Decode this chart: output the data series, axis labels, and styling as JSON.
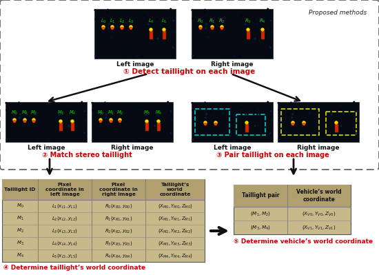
{
  "bg_color": "#ffffff",
  "proposed_label": "Proposed methods",
  "step1_label": "① Detect taillight on each image",
  "step2_label": "② Match stereo taillight",
  "step3_label": "③ Pair taillight on each image",
  "step4_label": "④ Determine taillight’s world coordinate",
  "step5_label": "⑤ Determine vehicle’s world coordinate",
  "left_image_label": "Left image",
  "right_image_label": "Right image",
  "table1_headers": [
    "Taillight ID",
    "Pixel\ncoordinate in\nleft image",
    "Pixel\ncoordinate in\nright image",
    "Taillight’s\nworld\ncoordinate"
  ],
  "table1_rows": [
    [
      "$\\mathit{M}_0$",
      "$L_1(x_{L1}, y_{L1})$",
      "$R_0(x_{R0}, y_{R0})$",
      "$(X_{M0},Y_{M0},Z_{M0})$"
    ],
    [
      "$\\mathit{M}_1$",
      "$L_2(x_{L2}, y_{L2})$",
      "$R_1(x_{R1}, y_{R1})$",
      "$(X_{M1},Y_{M1},Z_{M1})$"
    ],
    [
      "$\\mathit{M}_2$",
      "$L_3(x_{L3}, y_{L3})$",
      "$R_2(x_{R2}, y_{R2})$",
      "$(X_{M2},Y_{M2},Z_{M2})$"
    ],
    [
      "$\\mathit{M}_3$",
      "$L_4(x_{L4}, y_{L4})$",
      "$R_3(x_{R3}, y_{R3})$",
      "$(X_{M3},Y_{M3},Z_{M3})$"
    ],
    [
      "$\\mathit{M}_4$",
      "$L_5(x_{L5}, y_{L5})$",
      "$R_4(x_{R4}, y_{R4})$",
      "$(X_{M4},Y_{M4},Z_{M4})$"
    ]
  ],
  "table2_headers": [
    "Taillight pair",
    "Vehicle’s world\ncoordinate"
  ],
  "table2_rows": [
    [
      "$(M_1, M_2)$",
      "$(X_{V0},Y_{V0},Z_{V0})$"
    ],
    [
      "$(M_3, M_4)$",
      "$(X_{V1},Y_{V1},Z_{V1})$"
    ]
  ],
  "table_bg": "#c8b98a",
  "table_header_bg": "#b0a070",
  "arrow_color": "#111111",
  "step_color": "#cc0000",
  "img_dark": "#060a12",
  "img_border": "#404040",
  "green_label": "#00dd00",
  "cyan_box": "#00cccc",
  "yellow_box": "#dddd00"
}
